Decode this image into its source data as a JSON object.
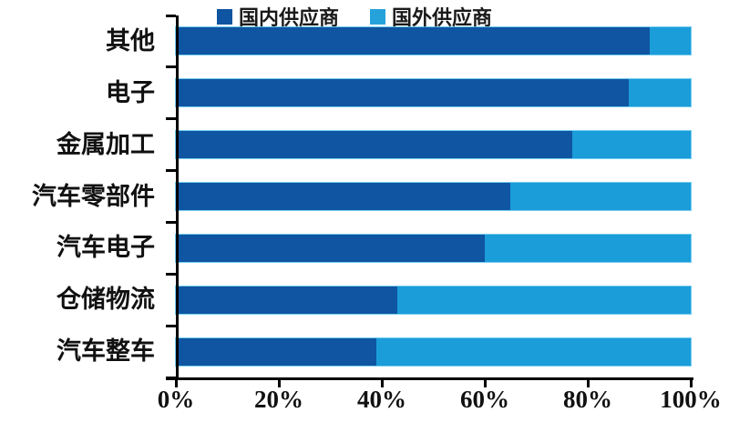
{
  "legend": {
    "items": [
      {
        "label": "国内供应商",
        "color": "#0F55A1"
      },
      {
        "label": "国外供应商",
        "color": "#26A2DB"
      }
    ]
  },
  "colors": {
    "domestic": "#0F55A1",
    "foreign": "#1B9DD9",
    "axis": "#000000",
    "background": "#FFFFFF",
    "bar_outline": "#5AC3EE"
  },
  "chart_data": {
    "type": "bar",
    "orientation": "horizontal",
    "stacked": true,
    "title": "",
    "xlabel": "",
    "ylabel": "",
    "categories": [
      "其他",
      "电子",
      "金属加工",
      "汽车零部件",
      "汽车电子",
      "仓储物流",
      "汽车整车"
    ],
    "series": [
      {
        "name": "国内供应商",
        "color": "#0F55A1",
        "values": [
          92,
          88,
          77,
          65,
          60,
          43,
          39
        ]
      },
      {
        "name": "国外供应商",
        "color": "#1B9DD9",
        "values": [
          8,
          12,
          23,
          35,
          40,
          57,
          61
        ]
      }
    ],
    "xlim": [
      0,
      100
    ],
    "xticks": [
      0,
      20,
      40,
      60,
      80,
      100
    ],
    "xtick_labels": [
      "0%",
      "20%",
      "40%",
      "60%",
      "80%",
      "100%"
    ],
    "legend_position": "top",
    "grid": false
  }
}
